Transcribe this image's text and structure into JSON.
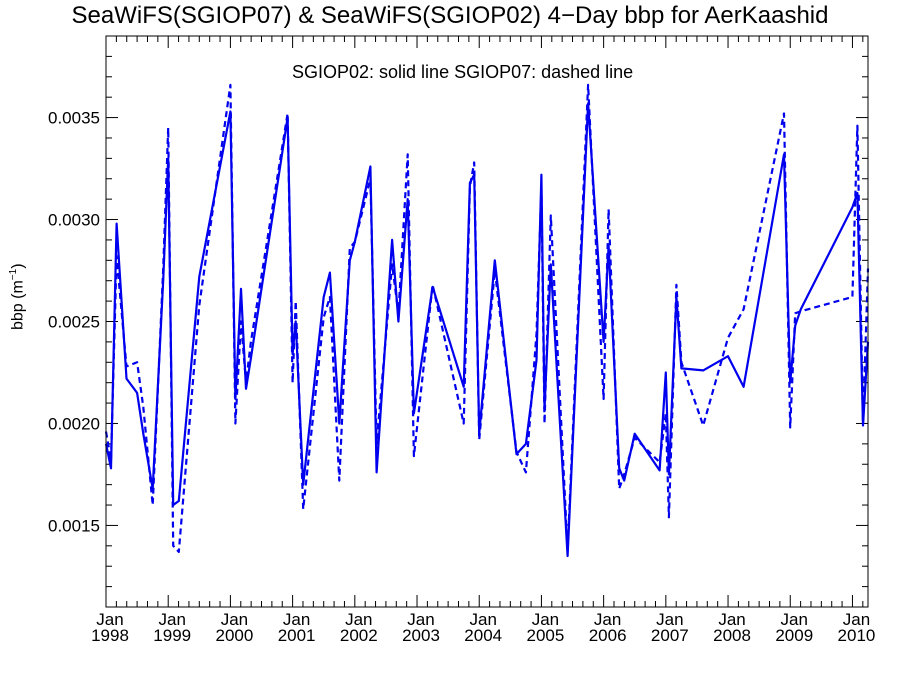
{
  "chart_data": {
    "type": "line",
    "title": "SeaWiFS(SGIOP07) & SeaWiFS(SGIOP02) 4−Day bbp for AerKaashid",
    "annotation": "SGIOP02: solid line   SGIOP07: dashed line",
    "ylabel_base": "bbp (m",
    "ylabel_exp": "−1",
    "ylabel_close": ")",
    "xlabel": "",
    "xlim": [
      1998.0,
      2010.25
    ],
    "ylim": [
      0.0011,
      0.0039
    ],
    "yticks": [
      0.0015,
      0.002,
      0.0025,
      0.003,
      0.0035
    ],
    "ytick_labels": [
      "0.0015",
      "0.0020",
      "0.0025",
      "0.0030",
      "0.0035"
    ],
    "xticks": [
      1998,
      1999,
      2000,
      2001,
      2002,
      2003,
      2004,
      2005,
      2006,
      2007,
      2008,
      2009,
      2010
    ],
    "xtick_month": "Jan",
    "xtick_years": [
      "1998",
      "1999",
      "2000",
      "2001",
      "2002",
      "2003",
      "2004",
      "2005",
      "2006",
      "2007",
      "2008",
      "2009",
      "2010"
    ],
    "grid": false,
    "line_color": "#0000ee",
    "series": [
      {
        "style": "solid",
        "x": [
          1998.0,
          1998.08,
          1998.17,
          1998.33,
          1998.5,
          1998.6,
          1998.75,
          1998.92,
          1999.0,
          1999.08,
          1999.17,
          1999.5,
          2000.0,
          2000.08,
          2000.17,
          2000.25,
          2000.33,
          2000.92,
          2001.0,
          2001.05,
          2001.17,
          2001.5,
          2001.6,
          2001.75,
          2001.92,
          2002.0,
          2002.25,
          2002.35,
          2002.6,
          2002.7,
          2002.85,
          2002.95,
          2003.25,
          2003.75,
          2003.85,
          2003.92,
          2004.0,
          2004.25,
          2004.6,
          2004.75,
          2004.92,
          2005.0,
          2005.05,
          2005.15,
          2005.42,
          2005.75,
          2006.0,
          2006.08,
          2006.25,
          2006.33,
          2006.5,
          2006.9,
          2007.0,
          2007.05,
          2007.17,
          2007.25,
          2007.6,
          2008.0,
          2008.25,
          2008.9,
          2009.0,
          2009.08,
          2009.17,
          2010.0,
          2010.08,
          2010.17,
          2010.25
        ],
        "y": [
          0.0019,
          0.00178,
          0.00298,
          0.00222,
          0.00215,
          0.00195,
          0.00168,
          0.0027,
          0.0033,
          0.0016,
          0.00162,
          0.00272,
          0.00353,
          0.00212,
          0.00266,
          0.00217,
          0.00232,
          0.0035,
          0.00234,
          0.0025,
          0.0017,
          0.00262,
          0.00274,
          0.002,
          0.0028,
          0.00289,
          0.00326,
          0.00176,
          0.0029,
          0.0025,
          0.0031,
          0.00205,
          0.00267,
          0.00218,
          0.00318,
          0.00322,
          0.00195,
          0.0028,
          0.00185,
          0.0019,
          0.00231,
          0.00322,
          0.00207,
          0.00278,
          0.00135,
          0.00357,
          0.0024,
          0.00287,
          0.00178,
          0.00172,
          0.00195,
          0.00177,
          0.00225,
          0.00175,
          0.00262,
          0.00227,
          0.00226,
          0.00233,
          0.00218,
          0.00332,
          0.0022,
          0.00248,
          0.00256,
          0.00306,
          0.00313,
          0.00199,
          0.0024
        ]
      },
      {
        "style": "dashed",
        "x": [
          1998.0,
          1998.08,
          1998.17,
          1998.33,
          1998.5,
          1998.6,
          1998.75,
          1998.92,
          1999.0,
          1999.08,
          1999.17,
          1999.5,
          2000.0,
          2000.08,
          2000.17,
          2000.25,
          2000.33,
          2000.92,
          2001.0,
          2001.05,
          2001.17,
          2001.5,
          2001.6,
          2001.75,
          2001.92,
          2002.0,
          2002.25,
          2002.35,
          2002.6,
          2002.7,
          2002.85,
          2002.95,
          2003.25,
          2003.75,
          2003.85,
          2003.92,
          2004.0,
          2004.25,
          2004.6,
          2004.75,
          2004.92,
          2005.0,
          2005.05,
          2005.15,
          2005.42,
          2005.75,
          2006.0,
          2006.08,
          2006.25,
          2006.33,
          2006.5,
          2006.9,
          2007.0,
          2007.05,
          2007.17,
          2007.25,
          2007.6,
          2008.0,
          2008.25,
          2008.9,
          2009.0,
          2009.08,
          2009.17,
          2010.0,
          2010.08,
          2010.17,
          2010.25
        ],
        "y": [
          0.00196,
          0.00182,
          0.00282,
          0.00228,
          0.0023,
          0.00208,
          0.0016,
          0.00276,
          0.00345,
          0.0014,
          0.00137,
          0.00258,
          0.00366,
          0.002,
          0.0025,
          0.0022,
          0.0024,
          0.00352,
          0.0022,
          0.0026,
          0.00158,
          0.00252,
          0.00262,
          0.00172,
          0.00286,
          0.00289,
          0.0032,
          0.0019,
          0.00278,
          0.00254,
          0.00332,
          0.00184,
          0.00268,
          0.002,
          0.00316,
          0.00328,
          0.00192,
          0.00275,
          0.00186,
          0.00176,
          0.00244,
          0.00316,
          0.002,
          0.00302,
          0.00138,
          0.00366,
          0.00212,
          0.00305,
          0.00168,
          0.00175,
          0.00193,
          0.00181,
          0.00205,
          0.00154,
          0.00268,
          0.0023,
          0.00199,
          0.00242,
          0.00256,
          0.00352,
          0.00198,
          0.00254,
          0.00255,
          0.00262,
          0.00346,
          0.002,
          0.00276
        ]
      }
    ]
  }
}
